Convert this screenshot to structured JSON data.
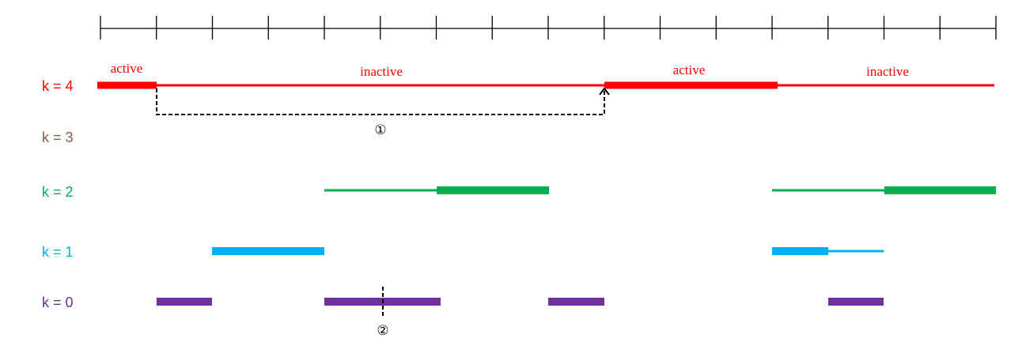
{
  "rows": [
    {
      "label": "k = 4"
    },
    {
      "label": "k = 3"
    },
    {
      "label": "k = 2"
    },
    {
      "label": "k = 1"
    },
    {
      "label": "k = 0"
    }
  ],
  "segment_labels": [
    "active",
    "inactive",
    "active",
    "inactive"
  ],
  "markers": [
    "①",
    "②"
  ]
}
